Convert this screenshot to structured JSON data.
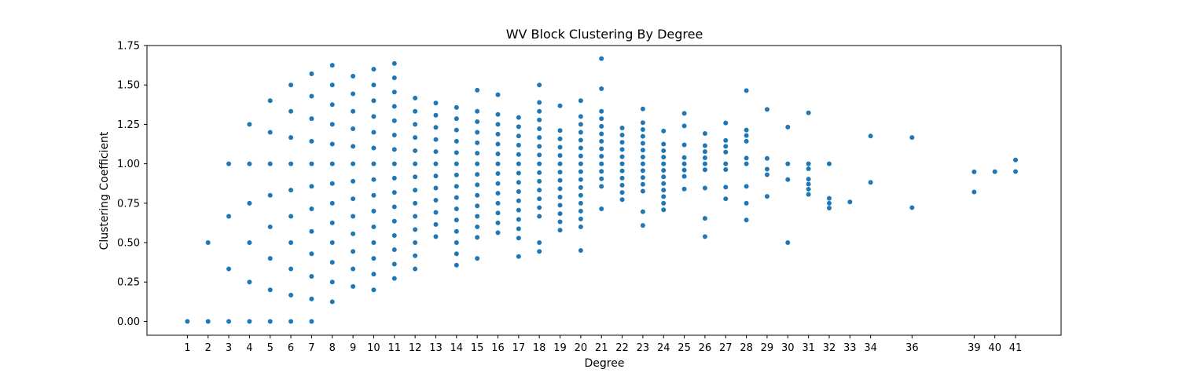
{
  "chart_data": {
    "type": "scatter",
    "title": "WV Block Clustering By Degree",
    "xlabel": "Degree",
    "ylabel": "Clustering Coefficient",
    "xlim": [
      -0.95,
      43.2
    ],
    "ylim": [
      -0.0875,
      1.75
    ],
    "xticks": [
      1,
      2,
      3,
      4,
      5,
      6,
      7,
      8,
      9,
      10,
      11,
      12,
      13,
      14,
      15,
      16,
      17,
      18,
      19,
      20,
      21,
      22,
      23,
      24,
      25,
      26,
      27,
      28,
      29,
      30,
      31,
      32,
      33,
      34,
      36,
      39,
      40,
      41
    ],
    "yticks": [
      0.0,
      0.25,
      0.5,
      0.75,
      1.0,
      1.25,
      1.5,
      1.75
    ],
    "ytick_labels": [
      "0.00",
      "0.25",
      "0.50",
      "0.75",
      "1.00",
      "1.25",
      "1.50",
      "1.75"
    ],
    "grid": false,
    "marker_color": "#1f77b4",
    "series": [
      {
        "points": [
          {
            "x": 1,
            "y": [
              0
            ]
          },
          {
            "x": 2,
            "y": [
              0,
              0.5
            ]
          },
          {
            "x": 3,
            "y": [
              0,
              0.333,
              0.667,
              1.0
            ]
          },
          {
            "x": 4,
            "y": [
              0,
              0.25,
              0.5,
              0.75,
              1.0,
              1.25
            ]
          },
          {
            "x": 5,
            "y": [
              0,
              0.2,
              0.4,
              0.6,
              0.8,
              1.0,
              1.2,
              1.4
            ]
          },
          {
            "x": 6,
            "y": [
              0,
              0.167,
              0.333,
              0.5,
              0.667,
              0.833,
              1.0,
              1.167,
              1.333,
              1.5
            ]
          },
          {
            "x": 7,
            "y": [
              0,
              0.143,
              0.286,
              0.429,
              0.571,
              0.714,
              0.857,
              1.0,
              1.143,
              1.286,
              1.429,
              1.571
            ]
          },
          {
            "x": 8,
            "y": [
              0.125,
              0.25,
              0.375,
              0.5,
              0.625,
              0.75,
              0.875,
              1.0,
              1.125,
              1.25,
              1.375,
              1.5,
              1.625
            ]
          },
          {
            "x": 9,
            "y": [
              0.222,
              0.333,
              0.444,
              0.556,
              0.667,
              0.778,
              0.889,
              1.0,
              1.111,
              1.222,
              1.333,
              1.444,
              1.556
            ]
          },
          {
            "x": 10,
            "y": [
              0.2,
              0.3,
              0.4,
              0.5,
              0.6,
              0.7,
              0.8,
              0.9,
              1.0,
              1.1,
              1.2,
              1.3,
              1.4,
              1.5,
              1.6
            ]
          },
          {
            "x": 11,
            "y": [
              0.273,
              0.364,
              0.455,
              0.545,
              0.636,
              0.727,
              0.818,
              0.909,
              1.0,
              1.091,
              1.182,
              1.273,
              1.364,
              1.455,
              1.545,
              1.636
            ]
          },
          {
            "x": 12,
            "y": [
              0.333,
              0.417,
              0.5,
              0.583,
              0.667,
              0.75,
              0.833,
              0.917,
              1.0,
              1.083,
              1.167,
              1.25,
              1.333,
              1.417
            ]
          },
          {
            "x": 13,
            "y": [
              0.538,
              0.615,
              0.692,
              0.769,
              0.846,
              0.923,
              1.0,
              1.077,
              1.154,
              1.231,
              1.308,
              1.385
            ]
          },
          {
            "x": 14,
            "y": [
              0.357,
              0.429,
              0.5,
              0.571,
              0.643,
              0.714,
              0.786,
              0.857,
              0.929,
              1.0,
              1.071,
              1.143,
              1.214,
              1.286,
              1.357
            ]
          },
          {
            "x": 15,
            "y": [
              0.4,
              0.533,
              0.6,
              0.667,
              0.733,
              0.8,
              0.867,
              0.933,
              1.0,
              1.067,
              1.133,
              1.2,
              1.267,
              1.333,
              1.467
            ]
          },
          {
            "x": 16,
            "y": [
              0.563,
              0.625,
              0.688,
              0.75,
              0.813,
              0.875,
              0.938,
              1.0,
              1.063,
              1.125,
              1.188,
              1.25,
              1.313,
              1.438
            ]
          },
          {
            "x": 17,
            "y": [
              0.412,
              0.529,
              0.588,
              0.647,
              0.706,
              0.765,
              0.824,
              0.882,
              0.941,
              1.0,
              1.059,
              1.118,
              1.176,
              1.235,
              1.294
            ]
          },
          {
            "x": 18,
            "y": [
              0.444,
              0.5,
              0.667,
              0.722,
              0.778,
              0.833,
              0.889,
              0.944,
              1.0,
              1.056,
              1.111,
              1.167,
              1.222,
              1.278,
              1.333,
              1.389,
              1.5
            ]
          },
          {
            "x": 19,
            "y": [
              0.579,
              0.632,
              0.684,
              0.737,
              0.789,
              0.842,
              0.895,
              0.947,
              1.0,
              1.053,
              1.105,
              1.158,
              1.211,
              1.368
            ]
          },
          {
            "x": 20,
            "y": [
              0.45,
              0.6,
              0.65,
              0.7,
              0.75,
              0.8,
              0.85,
              0.9,
              0.95,
              1.0,
              1.05,
              1.1,
              1.15,
              1.2,
              1.25,
              1.3,
              1.4
            ]
          },
          {
            "x": 21,
            "y": [
              0.714,
              0.857,
              0.905,
              0.952,
              1.0,
              1.048,
              1.095,
              1.143,
              1.19,
              1.238,
              1.286,
              1.333,
              1.476,
              1.667
            ]
          },
          {
            "x": 22,
            "y": [
              0.773,
              0.818,
              0.864,
              0.909,
              0.955,
              1.0,
              1.045,
              1.091,
              1.136,
              1.182,
              1.227
            ]
          },
          {
            "x": 23,
            "y": [
              0.609,
              0.696,
              0.826,
              0.87,
              0.913,
              0.957,
              1.0,
              1.043,
              1.087,
              1.13,
              1.174,
              1.217,
              1.261,
              1.348
            ]
          },
          {
            "x": 24,
            "y": [
              0.708,
              0.75,
              0.792,
              0.833,
              0.875,
              0.917,
              0.958,
              1.0,
              1.042,
              1.083,
              1.125,
              1.208
            ]
          },
          {
            "x": 25,
            "y": [
              0.84,
              0.92,
              0.96,
              1.0,
              1.04,
              1.12,
              1.24,
              1.32
            ]
          },
          {
            "x": 26,
            "y": [
              0.538,
              0.654,
              0.846,
              0.962,
              1.0,
              1.038,
              1.077,
              1.115,
              1.192
            ]
          },
          {
            "x": 27,
            "y": [
              0.778,
              0.852,
              0.963,
              1.0,
              1.074,
              1.111,
              1.148,
              1.259
            ]
          },
          {
            "x": 28,
            "y": [
              0.643,
              0.75,
              0.857,
              1.0,
              1.036,
              1.143,
              1.179,
              1.214,
              1.464
            ]
          },
          {
            "x": 29,
            "y": [
              0.793,
              0.931,
              0.966,
              1.034,
              1.345
            ]
          },
          {
            "x": 30,
            "y": [
              0.5,
              0.9,
              1.0,
              1.233
            ]
          },
          {
            "x": 31,
            "y": [
              0.806,
              0.839,
              0.871,
              0.903,
              0.968,
              1.0,
              1.323
            ]
          },
          {
            "x": 32,
            "y": [
              0.719,
              0.75,
              0.781,
              1.0
            ]
          },
          {
            "x": 33,
            "y": [
              0.758
            ]
          },
          {
            "x": 34,
            "y": [
              0.882,
              1.176
            ]
          },
          {
            "x": 36,
            "y": [
              0.722,
              1.167
            ]
          },
          {
            "x": 39,
            "y": [
              0.821,
              0.949
            ]
          },
          {
            "x": 40,
            "y": [
              0.95
            ]
          },
          {
            "x": 41,
            "y": [
              0.951,
              1.024
            ]
          }
        ]
      }
    ]
  }
}
